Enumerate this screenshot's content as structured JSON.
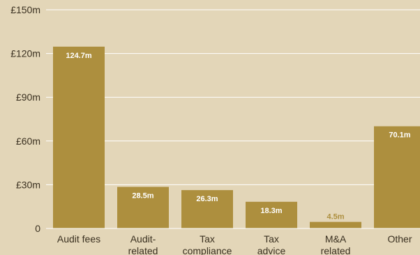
{
  "chart_data": {
    "type": "bar",
    "categories": [
      [
        "Audit fees"
      ],
      [
        "Audit-",
        "related"
      ],
      [
        "Tax",
        "compliance"
      ],
      [
        "Tax",
        "advice"
      ],
      [
        "M&A",
        "related"
      ],
      [
        "Other"
      ]
    ],
    "values": [
      124.7,
      28.5,
      26.3,
      18.3,
      4.5,
      70.1
    ],
    "data_labels": [
      "124.7m",
      "28.5m",
      "26.3m",
      "18.3m",
      "4.5m",
      "70.1m"
    ],
    "yticks": [
      0,
      30,
      60,
      90,
      120,
      150
    ],
    "ytick_labels": [
      "0",
      "£30m",
      "£60m",
      "£90m",
      "£120m",
      "£150m"
    ],
    "ylim": [
      0,
      150
    ],
    "grid": true,
    "colors": {
      "background": "#e3d6b8",
      "bar": "#ad8f3e",
      "grid": "#ffffff",
      "label_inside": "#ffffff",
      "label_outside": "#ad8f3e"
    }
  }
}
